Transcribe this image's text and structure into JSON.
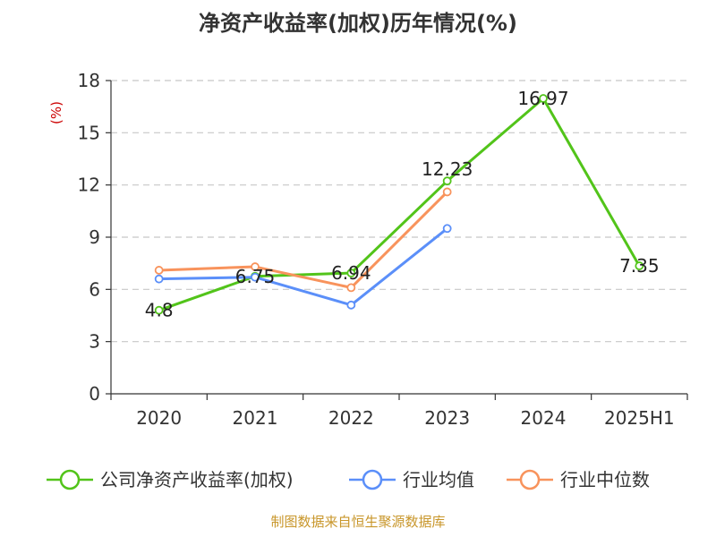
{
  "chart_data": {
    "type": "line",
    "title": "净资产收益率(加权)历年情况(%)",
    "ylabel": "(%)",
    "xlabel": "",
    "categories": [
      "2020",
      "2021",
      "2022",
      "2023",
      "2024",
      "2025H1"
    ],
    "ylim": [
      0,
      18
    ],
    "yticks": [
      0,
      3,
      6,
      9,
      12,
      15,
      18
    ],
    "grid": true,
    "legend_position": "bottom",
    "series": [
      {
        "name": "公司净资产收益率(加权)",
        "color": "#52c41a",
        "values": [
          4.8,
          6.75,
          6.94,
          12.23,
          16.97,
          7.35
        ],
        "labels": [
          "4.8",
          "6.75",
          "6.94",
          "12.23",
          "16.97",
          "7.35"
        ]
      },
      {
        "name": "行业均值",
        "color": "#5b8ff9",
        "values": [
          6.6,
          6.7,
          5.1,
          9.5,
          null,
          null
        ]
      },
      {
        "name": "行业中位数",
        "color": "#f8935c",
        "values": [
          7.1,
          7.3,
          6.1,
          11.6,
          null,
          null
        ]
      }
    ]
  },
  "source": "制图数据来自恒生聚源数据库"
}
